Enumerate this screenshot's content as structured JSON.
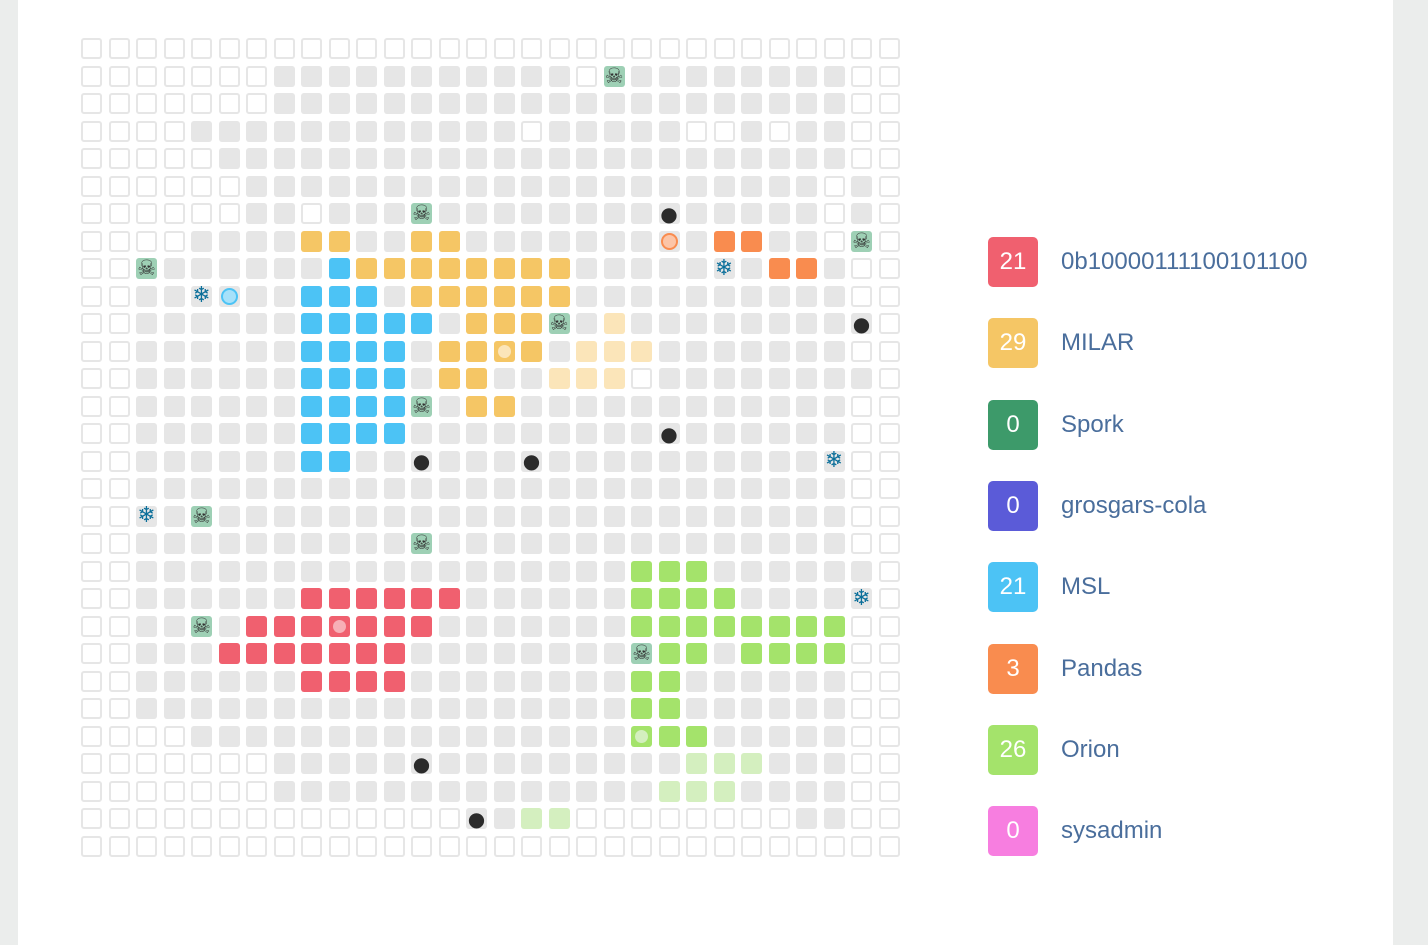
{
  "colors": {
    "grey_cell": "#e6e6e6",
    "white_cell": "#ffffff",
    "cell_border": "#e6e6e6"
  },
  "icons": {
    "S": "skull-icon",
    "B": "bomb-icon",
    "F": "freeze-icon"
  },
  "board": {
    "size": 30,
    "rows": [
      "______________________________",
      "_______..........._S.........__",
      "_______.......................F______",
      "____............_.....__.___",
      "_____........................__",
      "______....................._..._",
      "______.._...S........B.....__._",
      "____....yy..yy.........oo..__.S_",
      "__S......myyyyyyyy.....F.oo._..__",
      "__..F...mmm.yyyyyy.............__",
      "__......mmmmm.yyyS.Yz..........B_",
      "__......mmmm.yyyy.YYY..........__",
      "__......mmmm.yy..YYY_...............B._",
      "__......mmmmS.yy.............__",
      "__......mmmm.........B........__",
      "__......mm..B...B..........F...__",
      "__.......................__",
      "__F.S.........................__",
      "__..........S..................__",
      "__..................ggg.......B._",
      "__......rrrrrr......gggg.......F_",
      "__..S.rrrrrrr.......ggggggggg..__",
      "__...rrrrrrr........Sgg.gggggg...__",
      "__......rrrr........gg.........__",
      "__..................gg.........__",
      "____................ggg.......___",
      "_______.....B.........GGG......____",
      "_______..............GGG.......____",
      "______________B.GG__________",
      "______________________________"
    ]
  },
  "teams": [
    {
      "key": "r",
      "score": "21",
      "name": "0b10000111100101100",
      "color": "#f0606f",
      "light": "#f7b0b7"
    },
    {
      "key": "y",
      "score": "29",
      "name": "MILAR",
      "color": "#f5c665",
      "light": "#fbe5b9"
    },
    {
      "key": "s",
      "score": "0",
      "name": "Spork",
      "color": "#3d9a6a",
      "light": "#9ed0b5"
    },
    {
      "key": "p",
      "score": "0",
      "name": "grosgars-cola",
      "color": "#5b5bd8",
      "light": "#b0b0ee"
    },
    {
      "key": "m",
      "score": "21",
      "name": "MSL",
      "color": "#4cc3f5",
      "light": "#a6e1fa"
    },
    {
      "key": "o",
      "score": "3",
      "name": "Pandas",
      "color": "#f98c4f",
      "light": "#fcc5a7"
    },
    {
      "key": "g",
      "score": "26",
      "name": "Orion",
      "color": "#a4e36b",
      "light": "#d4efbf"
    },
    {
      "key": "k",
      "score": "0",
      "name": "sysadmin",
      "color": "#f77ee0",
      "light": "#fbbff0"
    }
  ]
}
